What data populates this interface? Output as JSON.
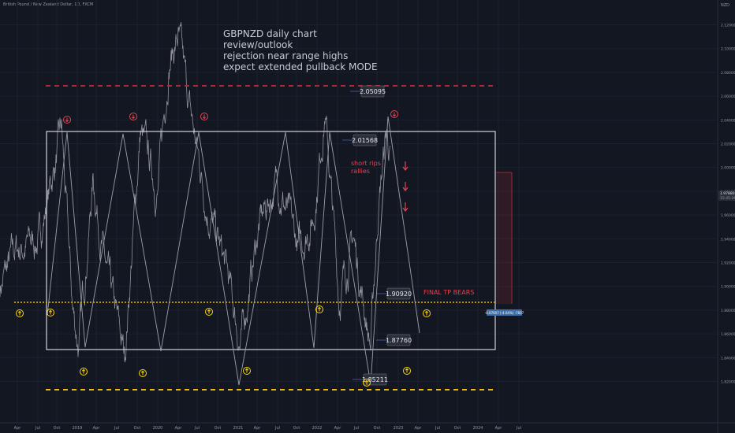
{
  "header": {
    "symbol": "British Pound / New Zealand Dollar, 1D, FXCM"
  },
  "chart_data": {
    "type": "line",
    "title": "GBPNZD daily chart",
    "annotation_lines": [
      "GBPNZD daily chart",
      "review/outlook",
      "rejection near range highs",
      "expect extended pullback MODE"
    ],
    "currency": "NZD",
    "x_ticks": [
      "Apr",
      "Jul",
      "Oct",
      "2019",
      "Apr",
      "Jul",
      "Oct",
      "2020",
      "Apr",
      "Jul",
      "Oct",
      "2021",
      "Apr",
      "Jul",
      "Oct",
      "2022",
      "Apr",
      "Jul",
      "Oct",
      "2023",
      "Apr",
      "Jul",
      "Oct",
      "2024",
      "Apr",
      "Jul"
    ],
    "y_ticks": [
      2.12,
      2.1,
      2.08,
      2.06,
      2.04,
      2.02,
      2.0,
      1.98,
      1.96,
      1.94,
      1.92,
      1.9,
      1.88,
      1.86,
      1.84,
      1.82
    ],
    "y_range": [
      1.82,
      2.125
    ],
    "price_labels": [
      "2.05095",
      "2.01568",
      "1.90920",
      "1.87760",
      "1.85211"
    ],
    "notes": [
      "short rips",
      "rallies",
      "FINAL TP BEARS"
    ],
    "current_price": "1.97880",
    "countdown": "15:45:26",
    "measure_label": "-0.07607 (-4.04%) -7607"
  },
  "colors": {
    "background": "#131722",
    "grid": "#1c2030",
    "price_line": "#8f929a",
    "red": "#f23645",
    "yellow": "#ffd60a",
    "box": "#d1d4dc",
    "label_bg": "#2a2e39"
  }
}
